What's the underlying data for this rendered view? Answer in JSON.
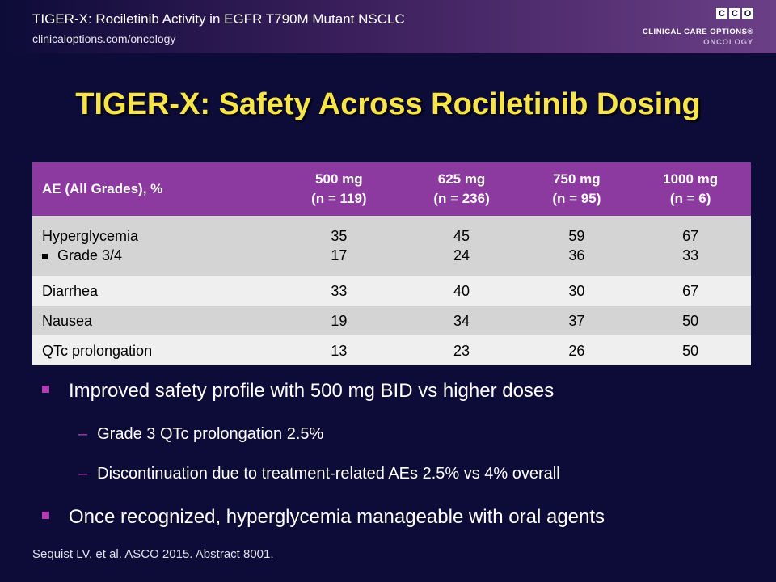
{
  "header": {
    "title": "TIGER-X: Rociletinib Activity in EGFR T790M Mutant NSCLC",
    "url": "clinicaloptions.com/oncology"
  },
  "logo": {
    "letters": [
      "C",
      "C",
      "O"
    ],
    "name": "CLINICAL CARE OPTIONS®",
    "sub": "ONCOLOGY"
  },
  "slide_title": "TIGER-X: Safety Across Rociletinib Dosing",
  "table": {
    "headers": [
      {
        "line1": "AE (All Grades), %",
        "line2": ""
      },
      {
        "line1": "500 mg",
        "line2": "(n = 119)"
      },
      {
        "line1": "625 mg",
        "line2": "(n = 236)"
      },
      {
        "line1": "750 mg",
        "line2": "(n = 95)"
      },
      {
        "line1": "1000 mg",
        "line2": "(n = 6)"
      }
    ],
    "rows": [
      {
        "label": "Hyperglycemia",
        "sublabel": "Grade 3/4",
        "values": [
          "35",
          "45",
          "59",
          "67"
        ],
        "subvalues": [
          "17",
          "24",
          "36",
          "33"
        ]
      },
      {
        "label": "Diarrhea",
        "values": [
          "33",
          "40",
          "30",
          "67"
        ]
      },
      {
        "label": "Nausea",
        "values": [
          "19",
          "34",
          "37",
          "50"
        ]
      },
      {
        "label": "QTc prolongation",
        "values": [
          "13",
          "23",
          "26",
          "50"
        ]
      }
    ]
  },
  "bullets": [
    {
      "text": "Improved safety profile with 500 mg BID vs higher doses",
      "subs": [
        "Grade 3 QTc prolongation 2.5%",
        "Discontinuation due to treatment-related AEs 2.5% vs 4% overall"
      ]
    },
    {
      "text": "Once recognized, hyperglycemia manageable with oral agents",
      "subs": []
    }
  ],
  "footer": "Sequist LV, et al. ASCO 2015. Abstract 8001.",
  "colors": {
    "title": "#f6e44a",
    "table_header": "#8c3aa0",
    "bullet": "#b13bb0",
    "background": "#0d0b38"
  }
}
